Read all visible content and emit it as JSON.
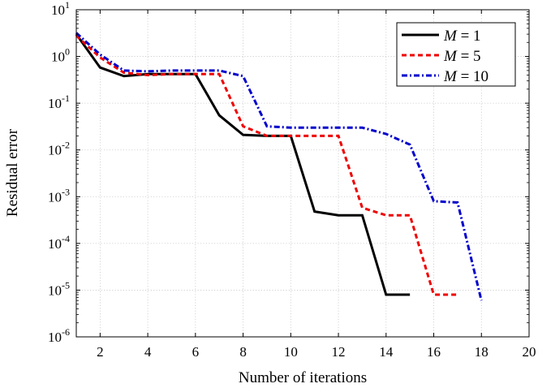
{
  "chart_data": {
    "type": "line",
    "xlabel": "Number of iterations",
    "ylabel": "Residual error",
    "xlim": [
      1,
      20
    ],
    "ylim_exp": [
      -6,
      1
    ],
    "yscale": "log",
    "grid": true,
    "legend_position": "top-right",
    "x_ticks": [
      2,
      4,
      6,
      8,
      10,
      12,
      14,
      16,
      18,
      20
    ],
    "y_tick_exponents": [
      -6,
      -5,
      -4,
      -3,
      -2,
      -1,
      0,
      1
    ],
    "y_tick_base": "10",
    "series": [
      {
        "name": "M = 1",
        "name_var": "M",
        "name_rest": " = 1",
        "color": "#000000",
        "dash": "solid",
        "x": [
          1,
          2,
          3,
          4,
          5,
          6,
          7,
          8,
          9,
          10,
          11,
          12,
          13,
          14,
          15
        ],
        "y": [
          3.0,
          0.58,
          0.38,
          0.42,
          0.42,
          0.42,
          0.055,
          0.021,
          0.02,
          0.02,
          0.00048,
          0.0004,
          0.0004,
          8e-06,
          8e-06
        ]
      },
      {
        "name": "M = 5",
        "name_var": "M",
        "name_rest": " = 5",
        "color": "#ee0000",
        "dash": "dashed",
        "x": [
          1,
          2,
          3,
          4,
          5,
          6,
          7,
          8,
          9,
          10,
          11,
          12,
          13,
          14,
          15,
          16,
          17
        ],
        "y": [
          2.8,
          0.95,
          0.45,
          0.4,
          0.42,
          0.42,
          0.42,
          0.032,
          0.02,
          0.02,
          0.02,
          0.02,
          0.00058,
          0.0004,
          0.0004,
          8e-06,
          8e-06
        ]
      },
      {
        "name": "M = 10",
        "name_var": "M",
        "name_rest": " = 10",
        "color": "#0000cc",
        "dash": "dashdot",
        "x": [
          1,
          2,
          3,
          4,
          5,
          6,
          7,
          8,
          9,
          10,
          11,
          12,
          13,
          14,
          15,
          16,
          17,
          18
        ],
        "y": [
          3.2,
          1.1,
          0.5,
          0.48,
          0.5,
          0.5,
          0.5,
          0.38,
          0.032,
          0.03,
          0.03,
          0.03,
          0.03,
          0.022,
          0.013,
          0.0008,
          0.00075,
          6e-06
        ]
      }
    ]
  }
}
